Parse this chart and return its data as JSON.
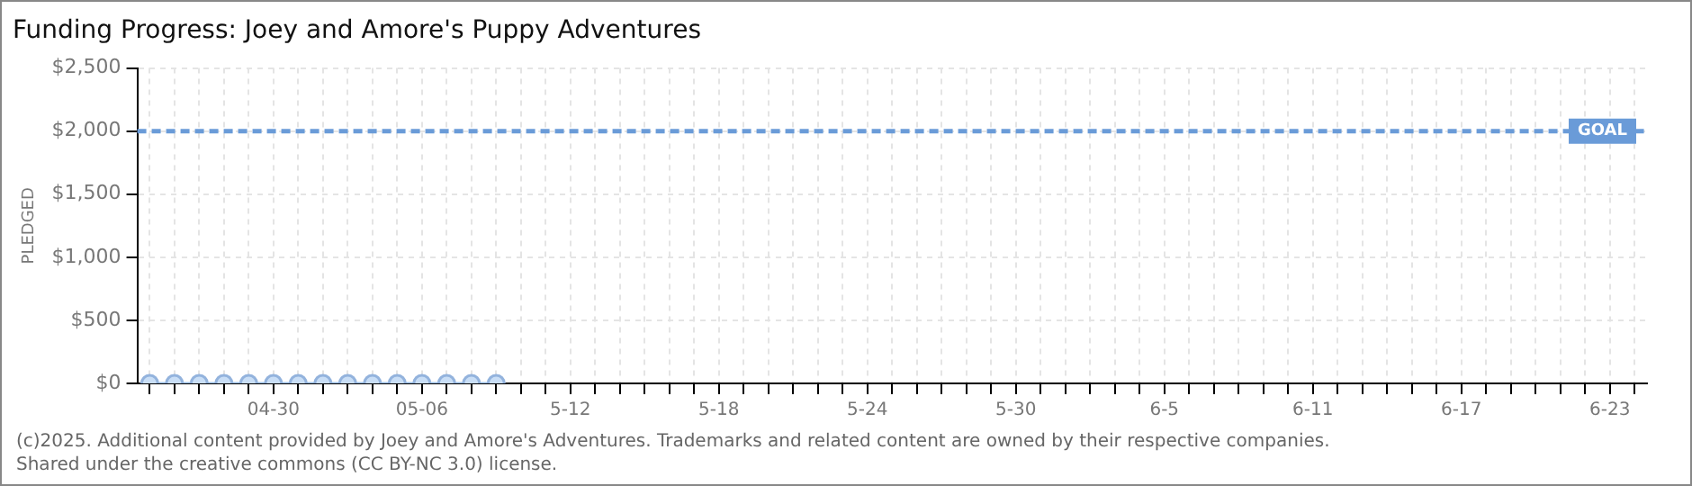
{
  "chart_data": {
    "type": "line",
    "title": "Funding Progress: Joey and Amore's Puppy Adventures",
    "ylabel": "PLEDGED",
    "categories": [
      null,
      null,
      null,
      null,
      null,
      "04-30",
      null,
      null,
      null,
      null,
      null,
      "05-06",
      null,
      null,
      null,
      null,
      null,
      "5-12",
      null,
      null,
      null,
      null,
      null,
      "5-18",
      null,
      null,
      null,
      null,
      null,
      "5-24",
      null,
      null,
      null,
      null,
      null,
      "5-30",
      null,
      null,
      null,
      null,
      null,
      "6-5",
      null,
      null,
      null,
      null,
      null,
      "6-11",
      null,
      null,
      null,
      null,
      null,
      "6-17",
      null,
      null,
      null,
      null,
      null,
      "6-23",
      null
    ],
    "series": [
      {
        "color": "#9cc0e8",
        "values": [
          0,
          0,
          0,
          0,
          0,
          0,
          0,
          0,
          0,
          0,
          0,
          0,
          0,
          0,
          0,
          null,
          null,
          null,
          null,
          null,
          null,
          null,
          null,
          null,
          null,
          null,
          null,
          null,
          null,
          null,
          null,
          null,
          null,
          null,
          null,
          null,
          null,
          null,
          null,
          null,
          null,
          null,
          null,
          null,
          null,
          null,
          null,
          null,
          null,
          null,
          null,
          null,
          null,
          null,
          null,
          null,
          null,
          null,
          null,
          null,
          null
        ]
      }
    ],
    "ylim": [
      0,
      2500
    ],
    "yticks": [
      {
        "value": 0,
        "label": "$0"
      },
      {
        "value": 500,
        "label": "$500"
      },
      {
        "value": 1000,
        "label": "$1,000"
      },
      {
        "value": 1500,
        "label": "$1,500"
      },
      {
        "value": 2000,
        "label": "$2,000"
      },
      {
        "value": 2500,
        "label": "$2,500"
      }
    ],
    "ref_lines": [
      {
        "axis": "y",
        "value": 2000,
        "label": "GOAL",
        "color": "#6a9bd8",
        "line_style": "dashed"
      }
    ],
    "grid": true,
    "marker": "circle",
    "line_style": "solid",
    "legend": false,
    "annotations": [
      "(c)2025. Additional content provided by Joey and Amore's Adventures. Trademarks and related content are owned by their respective companies.",
      "Shared under the creative commons (CC BY-NC 3.0) license."
    ]
  }
}
